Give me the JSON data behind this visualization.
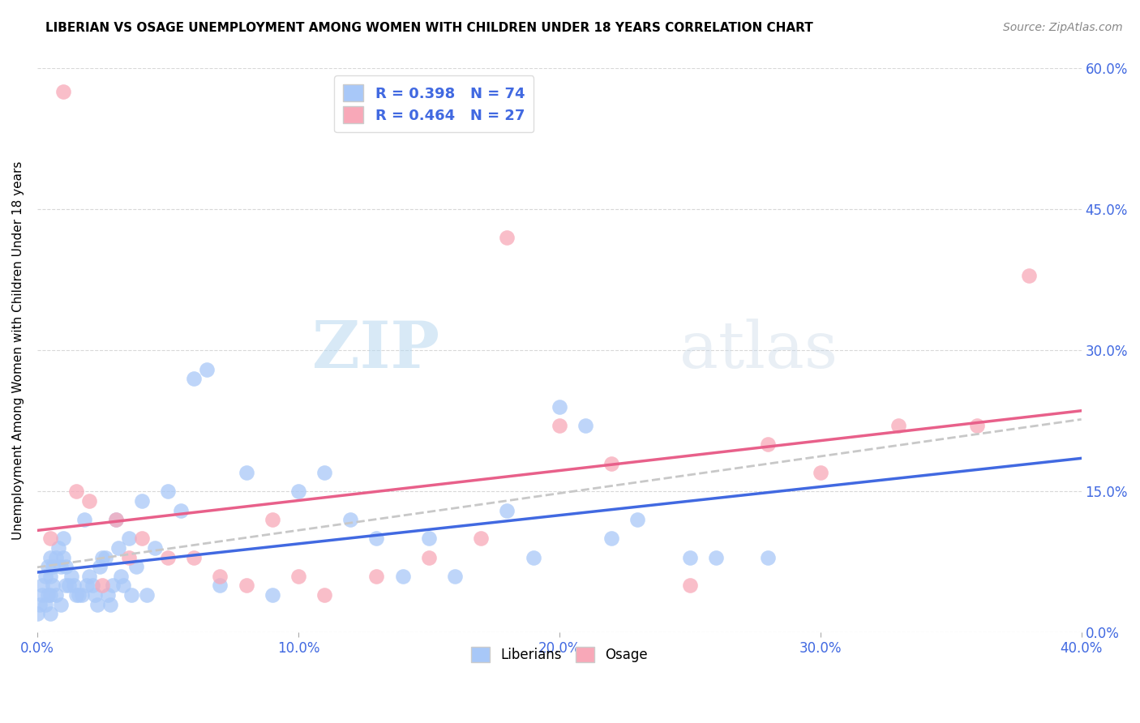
{
  "title": "LIBERIAN VS OSAGE UNEMPLOYMENT AMONG WOMEN WITH CHILDREN UNDER 18 YEARS CORRELATION CHART",
  "source": "Source: ZipAtlas.com",
  "ylabel": "Unemployment Among Women with Children Under 18 years",
  "xlabel_ticks": [
    "0.0%",
    "10.0%",
    "20.0%",
    "30.0%",
    "40.0%"
  ],
  "ylabel_ticks": [
    "0.0%",
    "15.0%",
    "30.0%",
    "45.0%",
    "60.0%"
  ],
  "xlim": [
    0.0,
    0.4
  ],
  "ylim": [
    0.0,
    0.6
  ],
  "liberian_R": 0.398,
  "liberian_N": 74,
  "osage_R": 0.464,
  "osage_N": 27,
  "liberian_color": "#a8c8f8",
  "osage_color": "#f8a8b8",
  "liberian_line_color": "#4169e1",
  "osage_line_color": "#e8608a",
  "trend_line_color": "#c8c8c8",
  "watermark_zip": "ZIP",
  "watermark_atlas": "atlas",
  "liberian_x": [
    0.0,
    0.001,
    0.002,
    0.002,
    0.003,
    0.003,
    0.004,
    0.004,
    0.005,
    0.005,
    0.005,
    0.005,
    0.006,
    0.006,
    0.007,
    0.007,
    0.008,
    0.009,
    0.009,
    0.01,
    0.01,
    0.011,
    0.011,
    0.012,
    0.013,
    0.014,
    0.015,
    0.016,
    0.017,
    0.018,
    0.019,
    0.02,
    0.021,
    0.022,
    0.023,
    0.024,
    0.025,
    0.026,
    0.027,
    0.028,
    0.029,
    0.03,
    0.031,
    0.032,
    0.033,
    0.035,
    0.036,
    0.038,
    0.04,
    0.042,
    0.045,
    0.05,
    0.055,
    0.06,
    0.065,
    0.07,
    0.08,
    0.09,
    0.1,
    0.11,
    0.12,
    0.13,
    0.14,
    0.15,
    0.16,
    0.18,
    0.19,
    0.2,
    0.21,
    0.22,
    0.23,
    0.25,
    0.26,
    0.28
  ],
  "liberian_y": [
    0.02,
    0.03,
    0.04,
    0.05,
    0.03,
    0.06,
    0.04,
    0.07,
    0.02,
    0.04,
    0.06,
    0.08,
    0.05,
    0.07,
    0.04,
    0.08,
    0.09,
    0.03,
    0.07,
    0.08,
    0.1,
    0.05,
    0.07,
    0.05,
    0.06,
    0.05,
    0.04,
    0.04,
    0.04,
    0.12,
    0.05,
    0.06,
    0.05,
    0.04,
    0.03,
    0.07,
    0.08,
    0.08,
    0.04,
    0.03,
    0.05,
    0.12,
    0.09,
    0.06,
    0.05,
    0.1,
    0.04,
    0.07,
    0.14,
    0.04,
    0.09,
    0.15,
    0.13,
    0.27,
    0.28,
    0.05,
    0.17,
    0.04,
    0.15,
    0.17,
    0.12,
    0.1,
    0.06,
    0.1,
    0.06,
    0.13,
    0.08,
    0.24,
    0.22,
    0.1,
    0.12,
    0.08,
    0.08,
    0.08
  ],
  "osage_x": [
    0.01,
    0.02,
    0.025,
    0.03,
    0.035,
    0.04,
    0.05,
    0.06,
    0.07,
    0.08,
    0.09,
    0.1,
    0.11,
    0.13,
    0.15,
    0.17,
    0.18,
    0.2,
    0.22,
    0.25,
    0.28,
    0.3,
    0.33,
    0.36,
    0.38,
    0.005,
    0.015
  ],
  "osage_y": [
    0.575,
    0.14,
    0.05,
    0.12,
    0.08,
    0.1,
    0.08,
    0.08,
    0.06,
    0.05,
    0.12,
    0.06,
    0.04,
    0.06,
    0.08,
    0.1,
    0.42,
    0.22,
    0.18,
    0.05,
    0.2,
    0.17,
    0.22,
    0.22,
    0.38,
    0.1,
    0.15
  ]
}
